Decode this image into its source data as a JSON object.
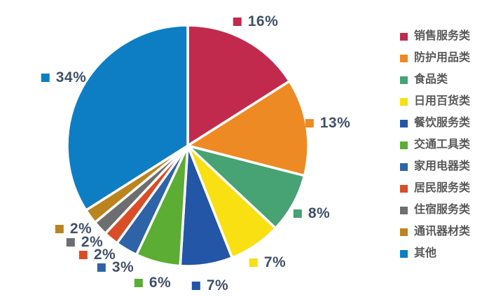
{
  "chart_data": {
    "type": "pie",
    "title": "",
    "unit": "%",
    "direction": "clockwise",
    "start_angle_deg": 0,
    "legend_position": "right",
    "grid": false,
    "slices": [
      {
        "label": "销售服务类",
        "value": 16,
        "display": "16%",
        "color": "#c22a4d"
      },
      {
        "label": "防护用品类",
        "value": 13,
        "display": "13%",
        "color": "#ee8a23"
      },
      {
        "label": "食品类",
        "value": 8,
        "display": "8%",
        "color": "#47a274"
      },
      {
        "label": "日用百货类",
        "value": 7,
        "display": "7%",
        "color": "#f8e013"
      },
      {
        "label": "餐饮服务类",
        "value": 7,
        "display": "7%",
        "color": "#2356a7"
      },
      {
        "label": "交通工具类",
        "value": 6,
        "display": "6%",
        "color": "#5cad33"
      },
      {
        "label": "家用电器类",
        "value": 3,
        "display": "3%",
        "color": "#2e63a8"
      },
      {
        "label": "居民服务类",
        "value": 2,
        "display": "2%",
        "color": "#d94e26"
      },
      {
        "label": "住宿服务类",
        "value": 2,
        "display": "2%",
        "color": "#6e6e70"
      },
      {
        "label": "通讯器材类",
        "value": 2,
        "display": "2%",
        "color": "#bb841f"
      },
      {
        "label": "其他",
        "value": 34,
        "display": "34%",
        "color": "#0d7ec3"
      }
    ],
    "style": {
      "background": "#ffffff",
      "slice_border_color": "#ffffff",
      "value_label_color": "#41506a",
      "legend_text_color": "#585858"
    }
  }
}
